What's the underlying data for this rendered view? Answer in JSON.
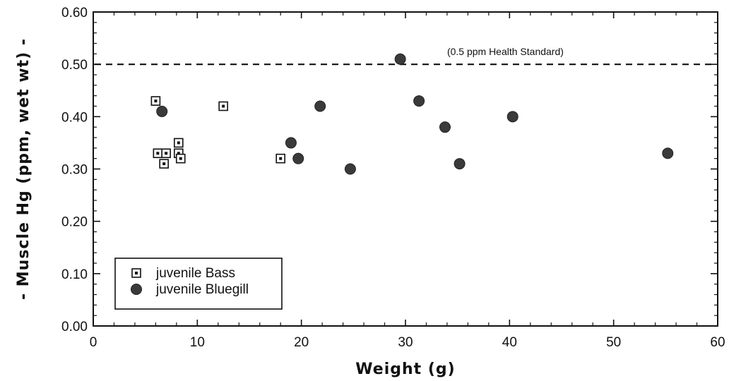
{
  "chart_data": {
    "type": "scatter",
    "xlabel": "Weight  (g)",
    "ylabel": "- Muscle Hg (ppm, wet wt) -",
    "xlim": [
      0,
      60
    ],
    "ylim": [
      0.0,
      0.6
    ],
    "x_ticks": [
      "0",
      "10",
      "20",
      "30",
      "40",
      "50",
      "60"
    ],
    "y_ticks": [
      "0.00",
      "0.10",
      "0.20",
      "0.30",
      "0.40",
      "0.50",
      "0.60"
    ],
    "grid": false,
    "legend_position": "bottom-left",
    "reference_line": {
      "y": 0.5,
      "style": "dashed",
      "label": "(0.5 ppm Health Standard)"
    },
    "series": [
      {
        "name": "juvenile Bass",
        "marker": "dotted-square",
        "color": "#111111",
        "points": [
          {
            "x": 6.0,
            "y": 0.43
          },
          {
            "x": 6.2,
            "y": 0.33
          },
          {
            "x": 6.8,
            "y": 0.31
          },
          {
            "x": 7.0,
            "y": 0.33
          },
          {
            "x": 8.2,
            "y": 0.35
          },
          {
            "x": 8.2,
            "y": 0.33
          },
          {
            "x": 8.4,
            "y": 0.32
          },
          {
            "x": 12.5,
            "y": 0.42
          },
          {
            "x": 18.0,
            "y": 0.32
          }
        ]
      },
      {
        "name": "juvenile Bluegill",
        "marker": "filled-circle",
        "color": "#3a3a3a",
        "points": [
          {
            "x": 6.6,
            "y": 0.41
          },
          {
            "x": 19.0,
            "y": 0.35
          },
          {
            "x": 19.7,
            "y": 0.32
          },
          {
            "x": 21.8,
            "y": 0.42
          },
          {
            "x": 24.7,
            "y": 0.3
          },
          {
            "x": 29.5,
            "y": 0.51
          },
          {
            "x": 31.3,
            "y": 0.43
          },
          {
            "x": 33.8,
            "y": 0.38
          },
          {
            "x": 35.2,
            "y": 0.31
          },
          {
            "x": 40.3,
            "y": 0.4
          },
          {
            "x": 55.2,
            "y": 0.33
          }
        ]
      }
    ]
  }
}
